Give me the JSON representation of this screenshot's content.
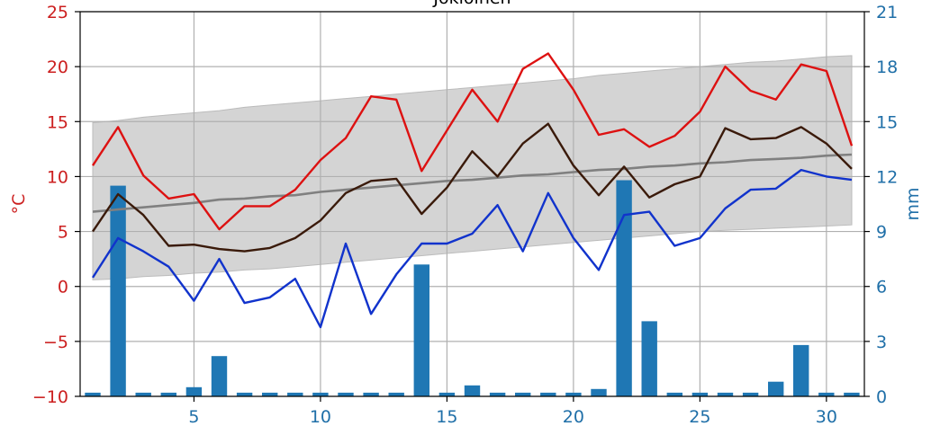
{
  "chart_data": {
    "type": "bar+line",
    "title": "Jokioinen",
    "x": [
      1,
      2,
      3,
      4,
      5,
      6,
      7,
      8,
      9,
      10,
      11,
      12,
      13,
      14,
      15,
      16,
      17,
      18,
      19,
      20,
      21,
      22,
      23,
      24,
      25,
      26,
      27,
      28,
      29,
      30,
      31
    ],
    "xticks": [
      5,
      10,
      15,
      20,
      25,
      30
    ],
    "xlim": [
      0.5,
      31.5
    ],
    "left_axis": {
      "label": "°C",
      "ylim": [
        -10,
        25
      ],
      "ticks": [
        -10,
        -5,
        0,
        5,
        10,
        15,
        20,
        25
      ],
      "tick_labels": [
        "−10",
        "−5",
        "0",
        "5",
        "10",
        "15",
        "20",
        "25"
      ],
      "color": "#cc1f1f"
    },
    "right_axis": {
      "label": "mm",
      "ylim": [
        0,
        21
      ],
      "ticks": [
        0,
        3,
        6,
        9,
        12,
        15,
        18,
        21
      ],
      "tick_labels": [
        "0",
        "3",
        "6",
        "9",
        "12",
        "15",
        "18",
        "21"
      ],
      "color": "#1f6fa8"
    },
    "band": {
      "color": "#d4d4d4",
      "edge_color": "#bbbbbb",
      "upper": [
        14.9,
        15.1,
        15.4,
        15.6,
        15.8,
        16.0,
        16.3,
        16.5,
        16.7,
        16.9,
        17.1,
        17.3,
        17.5,
        17.7,
        17.9,
        18.1,
        18.3,
        18.5,
        18.7,
        18.9,
        19.2,
        19.4,
        19.6,
        19.8,
        20.0,
        20.2,
        20.4,
        20.5,
        20.7,
        20.9,
        21.0
      ],
      "lower": [
        0.6,
        0.7,
        0.9,
        1.0,
        1.2,
        1.3,
        1.5,
        1.6,
        1.8,
        2.0,
        2.2,
        2.4,
        2.6,
        2.8,
        3.0,
        3.2,
        3.4,
        3.6,
        3.8,
        4.0,
        4.2,
        4.4,
        4.6,
        4.8,
        5.0,
        5.1,
        5.2,
        5.3,
        5.4,
        5.5,
        5.6
      ]
    },
    "series": [
      {
        "role": "max",
        "color": "#dd1111",
        "axis": "left",
        "values": [
          11.0,
          14.5,
          10.1,
          8.0,
          8.4,
          5.2,
          7.3,
          7.3,
          8.8,
          11.5,
          13.5,
          17.3,
          17.0,
          10.5,
          14.2,
          17.9,
          15.0,
          19.8,
          21.2,
          17.9,
          13.8,
          14.3,
          12.7,
          13.7,
          15.9,
          20.0,
          17.8,
          17.0,
          20.2,
          19.6,
          12.8
        ]
      },
      {
        "role": "mean",
        "color": "#3a1a0a",
        "axis": "left",
        "values": [
          5.0,
          8.4,
          6.5,
          3.7,
          3.8,
          3.4,
          3.2,
          3.5,
          4.4,
          6.0,
          8.5,
          9.6,
          9.8,
          6.6,
          9.0,
          12.3,
          10.0,
          13.0,
          14.8,
          11.0,
          8.3,
          10.9,
          8.1,
          9.3,
          10.0,
          14.4,
          13.4,
          13.5,
          14.5,
          13.0,
          10.7
        ]
      },
      {
        "role": "min",
        "color": "#1133cc",
        "axis": "left",
        "values": [
          0.8,
          4.4,
          3.2,
          1.8,
          -1.3,
          2.5,
          -1.5,
          -1.0,
          0.7,
          -3.7,
          3.9,
          -2.5,
          1.1,
          3.9,
          3.9,
          4.8,
          7.4,
          3.2,
          8.5,
          4.4,
          1.5,
          6.5,
          6.8,
          3.7,
          4.4,
          7.1,
          8.8,
          8.9,
          10.6,
          10.0,
          9.7
        ]
      },
      {
        "role": "mean_normal",
        "color": "#808080",
        "axis": "left",
        "values": [
          6.8,
          7.0,
          7.2,
          7.4,
          7.6,
          7.9,
          8.0,
          8.2,
          8.3,
          8.6,
          8.8,
          9.0,
          9.2,
          9.4,
          9.6,
          9.7,
          9.9,
          10.1,
          10.2,
          10.4,
          10.6,
          10.7,
          10.9,
          11.0,
          11.2,
          11.3,
          11.5,
          11.6,
          11.7,
          11.9,
          12.0
        ]
      }
    ],
    "bars": {
      "role": "precipitation",
      "color": "#1f77b4",
      "axis": "right",
      "values": [
        0.2,
        11.5,
        0.2,
        0.2,
        0.5,
        2.2,
        0.2,
        0.2,
        0.2,
        0.2,
        0.2,
        0.2,
        0.2,
        7.2,
        0.2,
        0.6,
        0.2,
        0.2,
        0.2,
        0.2,
        0.4,
        11.8,
        4.1,
        0.2,
        0.2,
        0.2,
        0.2,
        0.8,
        2.8,
        0.2,
        0.2
      ]
    },
    "grid": true
  }
}
